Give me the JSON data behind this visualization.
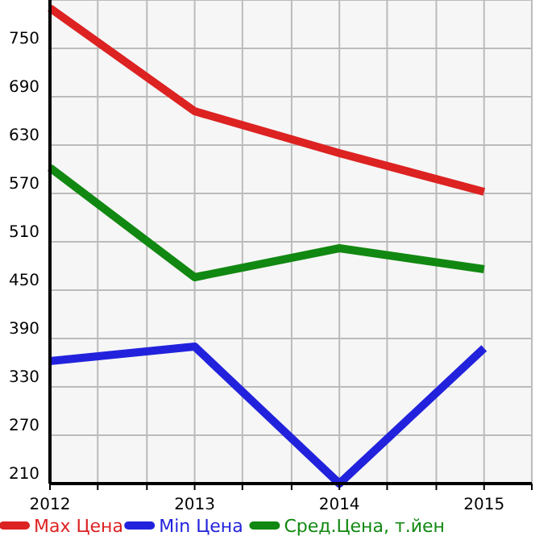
{
  "chart_data": {
    "type": "line",
    "x": [
      2012,
      2013,
      2014,
      2015
    ],
    "series": [
      {
        "name": "Max Цена",
        "color": "#dd2222",
        "values": [
          800,
          672,
          620,
          572
        ]
      },
      {
        "name": "Min Цена",
        "color": "#2222dd",
        "values": [
          362,
          380,
          210,
          378
        ]
      },
      {
        "name": "Сред.Цена, т.йен",
        "color": "#118811",
        "values": [
          602,
          466,
          502,
          476
        ]
      }
    ],
    "xlim": [
      2012,
      2015.33
    ],
    "xticks": [
      2012,
      {
        "value": 2012.33,
        "label": null
      },
      {
        "value": 2012.67,
        "label": null
      },
      2013,
      {
        "value": 2013.33,
        "label": null
      },
      {
        "value": 2013.67,
        "label": null
      },
      2014,
      {
        "value": 2014.33,
        "label": null
      },
      {
        "value": 2014.67,
        "label": null
      },
      2015,
      {
        "value": 2015.33,
        "label": null
      }
    ],
    "ylim": [
      210,
      810
    ],
    "yticks": [
      210,
      270,
      330,
      390,
      450,
      510,
      570,
      630,
      690,
      750,
      {
        "value": 810,
        "label": null
      }
    ],
    "grid": true,
    "legend": "bottom",
    "marker": "none",
    "line_style": "solid"
  }
}
